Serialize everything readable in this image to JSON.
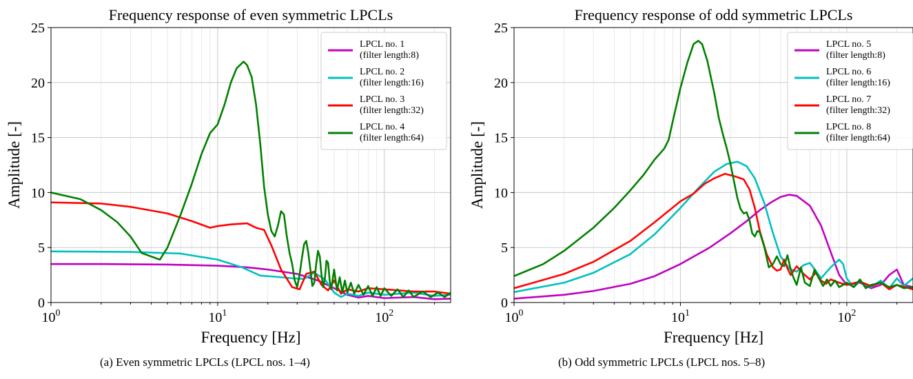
{
  "captions": {
    "a": "(a) Even symmetric LPCLs (LPCL nos. 1–4)",
    "b": "(b) Odd symmetric LPCLs (LPCL nos. 5–8)"
  },
  "chart_data": [
    {
      "type": "line",
      "title": "Frequency response of even symmetric LPCLs",
      "xlabel": "Frequency [Hz]",
      "ylabel": "Amplitude [-]",
      "xscale": "log",
      "xlim": [
        1,
        250
      ],
      "ylim": [
        0,
        25
      ],
      "xticks": [
        1,
        10,
        100
      ],
      "xtick_labels": [
        [
          "10",
          "0"
        ],
        [
          "10",
          "1"
        ],
        [
          "10",
          "2"
        ]
      ],
      "yticks": [
        0,
        5,
        10,
        15,
        20,
        25
      ],
      "grid": true,
      "legend_position": "top-right",
      "series": [
        {
          "name": "LPCL no. 1",
          "note": "(filter length:8)",
          "color": "#bf00bf",
          "x": [
            1,
            2,
            5,
            10,
            15,
            20,
            30,
            40,
            50,
            60,
            70,
            80,
            100,
            150,
            200,
            250
          ],
          "y": [
            3.5,
            3.5,
            3.45,
            3.35,
            3.2,
            3.0,
            2.6,
            2.0,
            1.3,
            0.7,
            0.45,
            0.6,
            0.4,
            0.5,
            0.3,
            0.35
          ]
        },
        {
          "name": "LPCL no. 2",
          "note": "(filter length:16)",
          "color": "#00bfbf",
          "x": [
            1,
            3,
            6,
            10,
            14,
            18,
            22,
            28,
            33,
            38,
            44,
            50,
            55,
            60,
            70,
            80,
            100,
            150,
            200,
            250
          ],
          "y": [
            4.65,
            4.6,
            4.45,
            3.9,
            3.2,
            2.45,
            2.35,
            2.2,
            2.15,
            2.7,
            2.1,
            0.9,
            0.5,
            0.8,
            0.6,
            0.9,
            0.7,
            0.9,
            0.6,
            0.7
          ]
        },
        {
          "name": "LPCL no. 3",
          "note": "(filter length:32)",
          "color": "#ff0000",
          "x": [
            1,
            2,
            3,
            5,
            7,
            9,
            10,
            12,
            15,
            17,
            19,
            21,
            24,
            28,
            31,
            34,
            38,
            42,
            46,
            50,
            55,
            60,
            70,
            80,
            100,
            150,
            200,
            250
          ],
          "y": [
            9.1,
            9.0,
            8.7,
            8.1,
            7.4,
            6.8,
            6.95,
            7.1,
            7.2,
            6.8,
            6.6,
            5.2,
            3.0,
            1.4,
            1.2,
            2.6,
            2.8,
            1.6,
            1.1,
            2.0,
            0.8,
            1.2,
            1.0,
            1.3,
            1.2,
            1.0,
            1.0,
            0.8
          ]
        },
        {
          "name": "LPCL no. 4",
          "note": "(filter length:64)",
          "color": "#007f00",
          "x": [
            1,
            1.5,
            2,
            2.5,
            3,
            3.5,
            4.5,
            5,
            6,
            7,
            8,
            9,
            10,
            11,
            12,
            13,
            14.3,
            15,
            16,
            17,
            18,
            19,
            20,
            21,
            22,
            23,
            24,
            25,
            26,
            27,
            28,
            29,
            30,
            31,
            32,
            33,
            34,
            35,
            36,
            37,
            38,
            39,
            40,
            41,
            42,
            43,
            44,
            45,
            46,
            47,
            48,
            50,
            52,
            54,
            56,
            58,
            60,
            63,
            66,
            70,
            75,
            80,
            85,
            90,
            95,
            100,
            110,
            120,
            130,
            140,
            150,
            170,
            190,
            210,
            230,
            250
          ],
          "y": [
            10.0,
            9.4,
            8.4,
            7.3,
            6.0,
            4.5,
            3.9,
            5.0,
            8.0,
            10.8,
            13.5,
            15.4,
            16.2,
            18.0,
            20.0,
            21.3,
            21.9,
            21.6,
            20.5,
            18.0,
            14.5,
            10.5,
            8.0,
            6.5,
            6.0,
            7.0,
            8.3,
            8.0,
            6.0,
            4.5,
            3.5,
            2.0,
            1.4,
            2.5,
            4.0,
            5.3,
            5.6,
            4.5,
            3.0,
            1.5,
            1.8,
            3.5,
            4.7,
            4.2,
            2.5,
            1.4,
            2.2,
            3.8,
            3.6,
            2.0,
            1.2,
            3.0,
            1.1,
            2.3,
            0.9,
            2.0,
            0.9,
            1.8,
            0.8,
            1.6,
            0.7,
            1.5,
            0.6,
            1.4,
            0.6,
            1.3,
            0.6,
            1.2,
            0.5,
            1.1,
            0.5,
            1.0,
            0.5,
            0.9,
            0.5,
            0.9
          ]
        }
      ]
    },
    {
      "type": "line",
      "title": "Frequency response of odd symmetric LPCLs",
      "xlabel": "Frequency [Hz]",
      "ylabel": "Amplitude [-]",
      "xscale": "log",
      "xlim": [
        1,
        250
      ],
      "ylim": [
        0,
        25
      ],
      "xticks": [
        1,
        10,
        100
      ],
      "xtick_labels": [
        [
          "10",
          "0"
        ],
        [
          "10",
          "1"
        ],
        [
          "10",
          "2"
        ]
      ],
      "yticks": [
        0,
        5,
        10,
        15,
        20,
        25
      ],
      "grid": true,
      "legend_position": "top-right",
      "series": [
        {
          "name": "LPCL no. 5",
          "note": "(filter length:8)",
          "color": "#bf00bf",
          "x": [
            1,
            2,
            3,
            5,
            7,
            10,
            15,
            20,
            25,
            30,
            35,
            40,
            45,
            50,
            60,
            70,
            80,
            90,
            100,
            120,
            140,
            160,
            180,
            200,
            220,
            250
          ],
          "y": [
            0.35,
            0.7,
            1.05,
            1.7,
            2.4,
            3.5,
            5.0,
            6.3,
            7.4,
            8.4,
            9.1,
            9.6,
            9.8,
            9.7,
            8.8,
            7.0,
            4.6,
            2.5,
            1.6,
            1.8,
            1.3,
            1.6,
            2.5,
            3.0,
            1.6,
            1.4
          ]
        },
        {
          "name": "LPCL no. 6",
          "note": "(filter length:16)",
          "color": "#00bfbf",
          "x": [
            1,
            2,
            3,
            5,
            7,
            10,
            13,
            16,
            19,
            22,
            25,
            28,
            32,
            36,
            40,
            45,
            50,
            55,
            60,
            65,
            70,
            80,
            90,
            95,
            100,
            110,
            120,
            140,
            160,
            180,
            200,
            220,
            250
          ],
          "y": [
            0.95,
            1.8,
            2.7,
            4.4,
            6.2,
            8.6,
            10.5,
            11.9,
            12.6,
            12.8,
            12.4,
            11.3,
            9.0,
            6.3,
            4.2,
            3.1,
            2.8,
            3.4,
            3.6,
            2.9,
            2.2,
            3.2,
            3.9,
            3.5,
            2.2,
            1.4,
            1.9,
            1.4,
            2.0,
            1.3,
            2.2,
            1.5,
            2.2
          ]
        },
        {
          "name": "LPCL no. 7",
          "note": "(filter length:32)",
          "color": "#ff0000",
          "x": [
            1,
            2,
            3,
            5,
            7,
            10,
            12,
            14,
            16,
            18.5,
            21,
            24,
            26,
            28,
            30,
            33,
            36,
            38,
            40,
            42,
            44,
            46,
            48,
            50,
            55,
            60,
            65,
            70,
            75,
            80,
            90,
            100,
            120,
            140,
            160,
            180,
            200,
            250
          ],
          "y": [
            1.3,
            2.6,
            3.7,
            5.6,
            7.3,
            9.2,
            9.9,
            10.8,
            11.3,
            11.7,
            11.5,
            11.2,
            10.3,
            8.6,
            6.5,
            4.4,
            3.2,
            2.9,
            3.0,
            3.9,
            3.1,
            2.5,
            2.9,
            3.3,
            2.6,
            2.1,
            2.7,
            2.0,
            1.7,
            2.1,
            1.8,
            1.6,
            1.9,
            1.5,
            1.8,
            1.2,
            1.6,
            1.2
          ]
        },
        {
          "name": "LPCL no. 8",
          "note": "(filter length:64)",
          "color": "#007f00",
          "x": [
            1,
            1.5,
            2,
            3,
            4,
            5,
            6,
            7,
            8,
            8.5,
            9,
            10,
            11,
            12,
            12.8,
            13.5,
            14.5,
            16,
            17,
            18,
            19,
            20,
            21,
            22,
            23,
            24,
            25,
            26,
            27,
            28,
            29,
            30,
            32,
            34,
            36,
            38,
            40,
            42,
            44,
            46,
            48,
            50,
            53,
            56,
            60,
            64,
            68,
            72,
            76,
            80,
            85,
            90,
            95,
            100,
            110,
            120,
            130,
            140,
            160,
            180,
            200,
            220,
            250
          ],
          "y": [
            2.4,
            3.5,
            4.7,
            6.8,
            8.6,
            10.2,
            11.6,
            13.0,
            14.0,
            14.8,
            16.5,
            19.5,
            21.8,
            23.5,
            23.8,
            23.5,
            22.0,
            19.0,
            16.8,
            15.3,
            14.0,
            12.6,
            11.0,
            9.5,
            8.5,
            8.1,
            8.2,
            7.5,
            6.3,
            6.0,
            6.5,
            6.4,
            5.0,
            3.2,
            3.5,
            4.2,
            3.5,
            3.3,
            4.3,
            3.0,
            2.2,
            1.6,
            3.2,
            1.8,
            1.5,
            3.0,
            2.2,
            1.5,
            2.1,
            1.5,
            2.0,
            1.4,
            1.6,
            1.8,
            1.4,
            2.1,
            1.3,
            1.6,
            1.8,
            1.4,
            1.6,
            1.3,
            1.4
          ]
        }
      ]
    }
  ]
}
